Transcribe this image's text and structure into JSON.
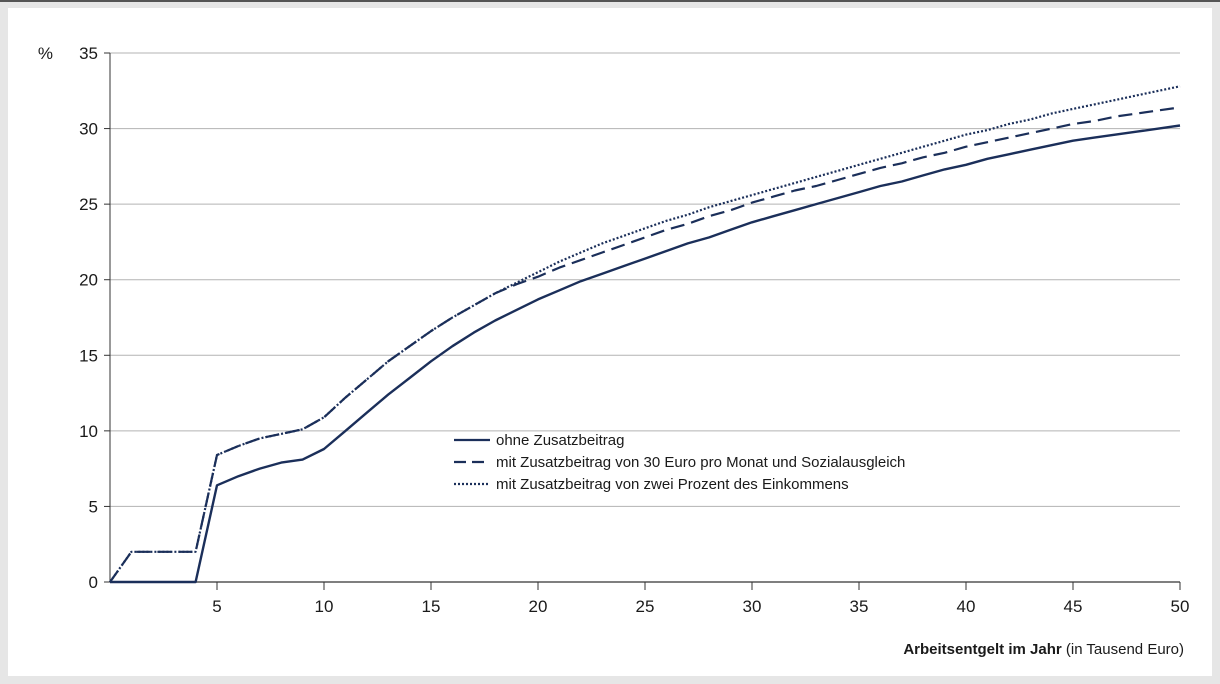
{
  "chart_data": {
    "type": "line",
    "unit_label": "%",
    "xlabel_bold": "Arbeitsentgelt im Jahr",
    "xlabel_rest": " (in Tausend Euro)",
    "xlim": [
      0,
      50
    ],
    "ylim": [
      0,
      35
    ],
    "x_ticks": [
      5,
      10,
      15,
      20,
      25,
      30,
      35,
      40,
      45,
      50
    ],
    "y_ticks": [
      0,
      5,
      10,
      15,
      20,
      25,
      30,
      35
    ],
    "grid": true,
    "legend_position": "center",
    "line_color": "#1b2f5a",
    "x": [
      0,
      1,
      2,
      3,
      4,
      5,
      6,
      7,
      8,
      9,
      10,
      11,
      12,
      13,
      14,
      15,
      16,
      17,
      18,
      19,
      20,
      21,
      22,
      23,
      24,
      25,
      26,
      27,
      28,
      29,
      30,
      31,
      32,
      33,
      34,
      35,
      36,
      37,
      38,
      39,
      40,
      41,
      42,
      43,
      44,
      45,
      46,
      47,
      48,
      49,
      50
    ],
    "series": [
      {
        "name": "ohne Zusatzbeitrag",
        "style": "solid",
        "values": [
          0,
          0,
          0,
          0,
          0,
          6.4,
          7.0,
          7.5,
          7.9,
          8.1,
          8.8,
          10.0,
          11.2,
          12.4,
          13.5,
          14.6,
          15.6,
          16.5,
          17.3,
          18.0,
          18.7,
          19.3,
          19.9,
          20.4,
          20.9,
          21.4,
          21.9,
          22.4,
          22.8,
          23.3,
          23.8,
          24.2,
          24.6,
          25.0,
          25.4,
          25.8,
          26.2,
          26.5,
          26.9,
          27.3,
          27.6,
          28.0,
          28.3,
          28.6,
          28.9,
          29.2,
          29.4,
          29.6,
          29.8,
          30.0,
          30.2
        ]
      },
      {
        "name": "mit Zusatzbeitrag von 30 Euro pro Monat und Sozialausgleich",
        "style": "dashed",
        "values": [
          0,
          2.0,
          2.0,
          2.0,
          2.0,
          8.4,
          9.0,
          9.5,
          9.8,
          10.1,
          10.9,
          12.2,
          13.4,
          14.6,
          15.6,
          16.6,
          17.5,
          18.3,
          19.1,
          19.7,
          20.2,
          20.8,
          21.3,
          21.8,
          22.3,
          22.8,
          23.3,
          23.7,
          24.2,
          24.6,
          25.1,
          25.5,
          25.9,
          26.2,
          26.6,
          27.0,
          27.4,
          27.7,
          28.1,
          28.4,
          28.8,
          29.1,
          29.4,
          29.7,
          30.0,
          30.3,
          30.5,
          30.8,
          31.0,
          31.2,
          31.4
        ]
      },
      {
        "name": "mit Zusatzbeitrag von zwei Prozent des Einkommens",
        "style": "dotted",
        "values": [
          0,
          2.0,
          2.0,
          2.0,
          2.0,
          8.4,
          9.0,
          9.5,
          9.8,
          10.1,
          10.9,
          12.2,
          13.4,
          14.6,
          15.6,
          16.6,
          17.5,
          18.3,
          19.1,
          19.8,
          20.5,
          21.2,
          21.8,
          22.4,
          22.9,
          23.4,
          23.9,
          24.3,
          24.8,
          25.2,
          25.6,
          26.0,
          26.4,
          26.8,
          27.2,
          27.6,
          28.0,
          28.4,
          28.8,
          29.2,
          29.6,
          29.9,
          30.3,
          30.6,
          31.0,
          31.3,
          31.6,
          31.9,
          32.2,
          32.5,
          32.8
        ]
      }
    ]
  }
}
